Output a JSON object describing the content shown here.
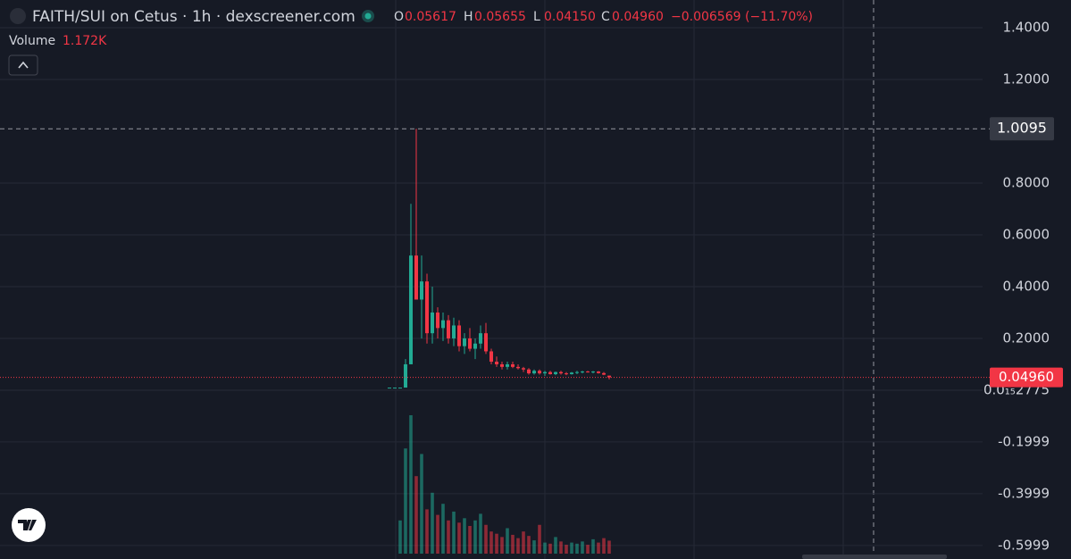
{
  "chart_data": {
    "type": "candlestick",
    "title": "FAITH/SUI on Cetus · 1h · dexscreener.com",
    "legend": {
      "ohlc": [
        [
          "O",
          "0.05617"
        ],
        [
          "H",
          "0.05655"
        ],
        [
          "L",
          "0.04150"
        ],
        [
          "C",
          "0.04960"
        ]
      ],
      "change": "−0.006569 (−11.70%)",
      "volume_name": "Volume",
      "volume": "1.172K"
    },
    "up_color": "#22ab94",
    "down_color": "#f23645",
    "ylim": [
      -0.652,
      1.507
    ],
    "yticks": [
      {
        "value": 1.4,
        "label": "1.4000"
      },
      {
        "value": 1.2,
        "label": "1.2000"
      },
      {
        "value": 0.8,
        "label": "0.8000"
      },
      {
        "value": 0.6,
        "label": "0.6000"
      },
      {
        "value": 0.4,
        "label": "0.4000"
      },
      {
        "value": 0.2,
        "label": "0.2000"
      },
      {
        "value": 2.775e-16,
        "label": "0.0₁₅2775"
      },
      -0.1999,
      -0.3999,
      -0.5999
    ],
    "crosshair": 1.0095,
    "last_price": {
      "value": 0.0496,
      "label": "0.04960"
    },
    "series": {
      "open": [
        0.01,
        0.01,
        0.01,
        0.01,
        0.1,
        0.52,
        0.35,
        0.42,
        0.22,
        0.3,
        0.24,
        0.27,
        0.2,
        0.25,
        0.17,
        0.2,
        0.16,
        0.18,
        0.22,
        0.15,
        0.11,
        0.1,
        0.09,
        0.1,
        0.09,
        0.085,
        0.08,
        0.065,
        0.075,
        0.065,
        0.07,
        0.062,
        0.07,
        0.065,
        0.062,
        0.068,
        0.07,
        0.072,
        0.07,
        0.072,
        0.066,
        0.05617
      ],
      "high": [
        0.01,
        0.01,
        0.01,
        0.12,
        0.72,
        1.0095,
        0.52,
        0.45,
        0.4,
        0.32,
        0.3,
        0.29,
        0.28,
        0.27,
        0.22,
        0.24,
        0.2,
        0.25,
        0.26,
        0.16,
        0.13,
        0.11,
        0.11,
        0.11,
        0.1,
        0.09,
        0.085,
        0.08,
        0.08,
        0.075,
        0.075,
        0.072,
        0.075,
        0.07,
        0.07,
        0.075,
        0.075,
        0.075,
        0.074,
        0.074,
        0.07,
        0.05655
      ],
      "low": [
        0.01,
        0.01,
        0.01,
        0.01,
        0.1,
        0.35,
        0.2,
        0.18,
        0.18,
        0.2,
        0.19,
        0.18,
        0.17,
        0.15,
        0.14,
        0.15,
        0.12,
        0.16,
        0.14,
        0.1,
        0.09,
        0.08,
        0.08,
        0.085,
        0.08,
        0.07,
        0.06,
        0.06,
        0.06,
        0.055,
        0.06,
        0.058,
        0.06,
        0.058,
        0.06,
        0.062,
        0.065,
        0.068,
        0.065,
        0.064,
        0.058,
        0.0415
      ],
      "close": [
        0.01,
        0.01,
        0.01,
        0.1,
        0.52,
        0.35,
        0.42,
        0.22,
        0.3,
        0.24,
        0.27,
        0.2,
        0.25,
        0.17,
        0.2,
        0.16,
        0.18,
        0.22,
        0.15,
        0.11,
        0.1,
        0.09,
        0.1,
        0.09,
        0.085,
        0.08,
        0.065,
        0.075,
        0.065,
        0.07,
        0.062,
        0.07,
        0.065,
        0.062,
        0.068,
        0.07,
        0.072,
        0.07,
        0.072,
        0.066,
        0.06,
        0.0496
      ],
      "volume": [
        0,
        0,
        3000,
        9500,
        12500,
        7000,
        9000,
        4000,
        5500,
        3500,
        4500,
        3000,
        3800,
        2800,
        3200,
        2500,
        3000,
        3600,
        2600,
        2000,
        1800,
        1500,
        2300,
        1700,
        1400,
        2000,
        1600,
        1200,
        2600,
        1000,
        900,
        1500,
        1100,
        800,
        1000,
        900,
        1100,
        800,
        1300,
        1000,
        1400,
        1172
      ]
    }
  }
}
